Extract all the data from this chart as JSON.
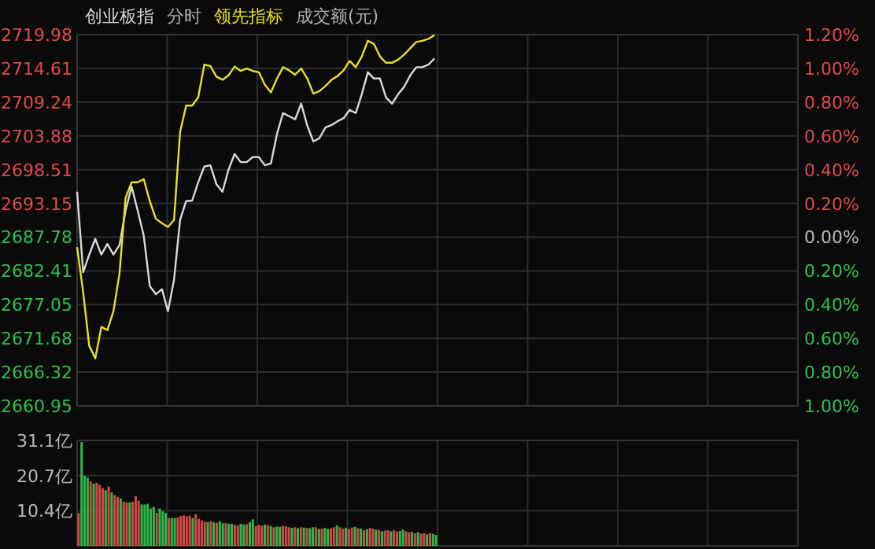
{
  "chart_data": [
    {
      "type": "line",
      "grid": true,
      "annotations": [
        "分时",
        "成交额(元)"
      ],
      "categories": [
        null,
        null,
        null,
        null,
        null,
        null,
        null,
        null,
        null,
        null,
        null,
        null,
        null,
        null,
        null,
        null,
        null,
        null,
        null,
        null,
        null,
        null,
        null,
        null,
        null,
        null,
        null,
        null,
        null,
        null,
        null,
        null,
        null,
        null,
        null,
        null,
        null,
        null,
        null,
        null,
        null,
        null,
        null,
        null,
        null,
        null,
        null,
        null,
        null,
        null,
        null,
        null,
        null,
        null,
        null,
        null,
        null,
        null,
        null,
        null,
        null,
        null,
        null,
        null,
        null,
        null,
        null,
        null,
        null,
        null,
        null,
        null,
        null,
        null,
        null,
        null,
        null,
        null,
        null,
        null,
        null,
        null,
        null,
        null,
        null,
        null,
        null,
        null,
        null,
        null,
        null,
        null,
        null,
        null,
        null,
        null,
        null,
        null,
        null,
        null,
        null,
        null,
        null,
        null,
        null,
        null,
        null,
        null,
        null,
        null,
        null,
        null,
        null,
        null,
        null,
        null,
        null,
        null,
        null,
        null
      ],
      "ylim": [
        2660.95,
        2719.98
      ],
      "yticks": [
        2719.98,
        2714.61,
        2709.24,
        2703.88,
        2698.51,
        2693.15,
        2687.78,
        2682.41,
        2677.05,
        2671.68,
        2666.32,
        2660.95
      ],
      "y2lim": [
        -1.0,
        1.2
      ],
      "y2ticks": [
        {
          "value": 1.2,
          "label": "1.20%"
        },
        {
          "value": 1.0,
          "label": "1.00%"
        },
        {
          "value": 0.8,
          "label": "0.80%"
        },
        {
          "value": 0.6,
          "label": "0.60%"
        },
        {
          "value": 0.4,
          "label": "0.40%"
        },
        {
          "value": 0.2,
          "label": "0.20%"
        },
        {
          "value": 0.0,
          "label": "0.00%"
        },
        {
          "value": -0.2,
          "label": "0.20%"
        },
        {
          "value": -0.4,
          "label": "0.40%"
        },
        {
          "value": -0.6,
          "label": "0.60%"
        },
        {
          "value": -0.8,
          "label": "0.80%"
        },
        {
          "value": -1.0,
          "label": "1.00%"
        }
      ],
      "series": [
        {
          "name": "创业板指",
          "color": "#d8d8d8",
          "values": [
            2695.0,
            2682.2,
            2685.0,
            2687.5,
            2685.0,
            2686.7,
            2685.0,
            2686.5,
            2692.0,
            2695.8,
            2692.0,
            2688.0,
            2680.0,
            2678.7,
            2679.5,
            2676.0,
            2681.0,
            2690.5,
            2693.5,
            2693.6,
            2696.5,
            2699.0,
            2699.2,
            2696.2,
            2695.0,
            2698.5,
            2701.0,
            2699.7,
            2699.7,
            2700.5,
            2700.5,
            2699.2,
            2699.5,
            2704.2,
            2707.5,
            2707.0,
            2706.5,
            2709.0,
            2705.5,
            2703.0,
            2703.5,
            2705.2,
            2705.6,
            2706.2,
            2706.7,
            2708.0,
            2707.5,
            2710.5,
            2714.0,
            2713.0,
            2713.0,
            2710.0,
            2709.0,
            2710.5,
            2711.7,
            2713.5,
            2714.8,
            2714.8,
            2715.2,
            2716.2,
            null,
            null,
            null,
            null,
            null,
            null,
            null,
            null,
            null,
            null,
            null,
            null,
            null,
            null,
            null,
            null,
            null,
            null,
            null,
            null,
            null,
            null,
            null,
            null,
            null,
            null,
            null,
            null,
            null,
            null,
            null,
            null,
            null,
            null,
            null,
            null,
            null,
            null,
            null,
            null,
            null,
            null,
            null,
            null,
            null,
            null,
            null,
            null,
            null,
            null,
            null,
            null,
            null,
            null,
            null,
            null,
            null,
            null,
            null,
            null
          ]
        },
        {
          "name": "领先指标",
          "color": "#e8e020",
          "values": [
            2686.2,
            2679.0,
            2670.5,
            2668.5,
            2673.5,
            2673.0,
            2676.0,
            2682.0,
            2694.0,
            2696.5,
            2696.5,
            2697.0,
            2693.5,
            2690.7,
            2690.0,
            2689.4,
            2690.5,
            2704.5,
            2708.7,
            2708.7,
            2710.0,
            2715.2,
            2715.0,
            2713.3,
            2712.8,
            2713.5,
            2714.9,
            2714.2,
            2714.6,
            2714.2,
            2714.0,
            2712.0,
            2710.8,
            2713.0,
            2714.8,
            2714.3,
            2713.6,
            2714.6,
            2713.0,
            2710.6,
            2711.0,
            2711.8,
            2712.8,
            2713.4,
            2714.3,
            2715.8,
            2714.8,
            2716.5,
            2719.0,
            2718.5,
            2716.5,
            2715.5,
            2715.5,
            2716.0,
            2716.8,
            2717.8,
            2718.8,
            2719.0,
            2719.3,
            2719.9,
            null,
            null,
            null,
            null,
            null,
            null,
            null,
            null,
            null,
            null,
            null,
            null,
            null,
            null,
            null,
            null,
            null,
            null,
            null,
            null,
            null,
            null,
            null,
            null,
            null,
            null,
            null,
            null,
            null,
            null,
            null,
            null,
            null,
            null,
            null,
            null,
            null,
            null,
            null,
            null,
            null,
            null,
            null,
            null,
            null,
            null,
            null,
            null,
            null,
            null,
            null,
            null,
            null,
            null,
            null,
            null,
            null,
            null,
            null,
            null
          ]
        }
      ]
    },
    {
      "type": "bar",
      "grid": true,
      "categories": [
        null,
        null,
        null,
        null,
        null,
        null,
        null,
        null,
        null,
        null,
        null,
        null,
        null,
        null,
        null,
        null,
        null,
        null,
        null,
        null,
        null,
        null,
        null,
        null,
        null,
        null,
        null,
        null,
        null,
        null,
        null,
        null,
        null,
        null,
        null,
        null,
        null,
        null,
        null,
        null,
        null,
        null,
        null,
        null,
        null,
        null,
        null,
        null,
        null,
        null,
        null,
        null,
        null,
        null,
        null,
        null,
        null,
        null,
        null,
        null,
        null,
        null,
        null,
        null,
        null,
        null,
        null,
        null,
        null,
        null,
        null,
        null,
        null,
        null,
        null,
        null,
        null,
        null,
        null,
        null,
        null,
        null,
        null,
        null,
        null,
        null,
        null,
        null,
        null,
        null,
        null,
        null,
        null,
        null,
        null,
        null,
        null,
        null,
        null,
        null,
        null,
        null,
        null,
        null,
        null,
        null,
        null,
        null,
        null,
        null,
        null,
        null,
        null,
        null,
        null,
        null,
        null,
        null,
        null,
        null,
        null,
        null,
        null,
        null,
        null,
        null,
        null,
        null,
        null,
        null,
        null,
        null,
        null,
        null,
        null,
        null,
        null,
        null,
        null,
        null,
        null,
        null,
        null,
        null,
        null,
        null,
        null,
        null,
        null,
        null,
        null,
        null,
        null,
        null,
        null,
        null,
        null,
        null,
        null,
        null,
        null,
        null,
        null,
        null,
        null,
        null,
        null,
        null,
        null,
        null,
        null,
        null,
        null,
        null,
        null,
        null,
        null,
        null,
        null,
        null,
        null,
        null,
        null,
        null,
        null,
        null,
        null,
        null,
        null,
        null,
        null,
        null,
        null,
        null,
        null,
        null,
        null,
        null,
        null,
        null,
        null,
        null,
        null,
        null,
        null,
        null,
        null,
        null,
        null,
        null,
        null,
        null,
        null,
        null,
        null,
        null,
        null,
        null,
        null,
        null,
        null,
        null,
        null,
        null,
        null,
        null,
        null,
        null,
        null,
        null,
        null,
        null,
        null,
        null,
        null,
        null,
        null,
        null,
        null,
        null
      ],
      "ylim": [
        0,
        31.1
      ],
      "yticks": [
        {
          "value": 10.4,
          "label": "10.4亿"
        },
        {
          "value": 20.7,
          "label": "20.7亿"
        },
        {
          "value": 31.1,
          "label": "31.1亿"
        }
      ],
      "values": [
        9.7,
        30.6,
        20.7,
        20.1,
        19.0,
        18.4,
        18.6,
        18.0,
        17.0,
        16.4,
        17.5,
        15.8,
        15.0,
        14.4,
        14.0,
        13.0,
        12.8,
        12.8,
        13.0,
        14.7,
        13.3,
        12.2,
        12.2,
        12.4,
        11.0,
        11.5,
        9.7,
        11.0,
        10.2,
        9.7,
        8.2,
        8.2,
        8.2,
        8.4,
        8.8,
        9.0,
        8.7,
        8.9,
        8.2,
        9.4,
        8.0,
        7.5,
        7.2,
        7.0,
        7.3,
        7.0,
        6.8,
        7.2,
        6.7,
        6.7,
        6.5,
        6.5,
        6.2,
        6.0,
        6.5,
        6.3,
        6.4,
        7.0,
        7.8,
        5.8,
        6.2,
        6.0,
        6.3,
        6.1,
        5.8,
        5.5,
        5.7,
        5.6,
        5.9,
        5.8,
        5.5,
        5.3,
        5.5,
        5.2,
        5.5,
        5.4,
        5.3,
        5.2,
        5.5,
        5.5,
        5.0,
        5.1,
        5.3,
        5.0,
        5.2,
        5.5,
        6.0,
        5.5,
        5.1,
        5.3,
        5.0,
        5.4,
        5.6,
        5.2,
        5.1,
        4.6,
        4.9,
        5.3,
        5.1,
        4.8,
        4.7,
        4.3,
        4.5,
        4.6,
        4.3,
        4.6,
        4.2,
        4.4,
        4.8,
        4.3,
        4.0,
        4.1,
        3.7,
        4.0,
        3.6,
        3.7,
        3.4,
        3.8,
        3.5,
        3.2,
        null,
        null,
        null,
        null,
        null,
        null,
        null,
        null,
        null,
        null,
        null,
        null,
        null,
        null,
        null,
        null,
        null,
        null,
        null,
        null,
        null,
        null,
        null,
        null,
        null,
        null,
        null,
        null,
        null,
        null,
        null,
        null,
        null,
        null,
        null,
        null,
        null,
        null,
        null,
        null,
        null,
        null,
        null,
        null,
        null,
        null,
        null,
        null,
        null,
        null,
        null,
        null,
        null,
        null,
        null,
        null,
        null,
        null,
        null,
        null,
        null,
        null,
        null,
        null,
        null,
        null,
        null,
        null,
        null,
        null,
        null,
        null,
        null,
        null,
        null,
        null,
        null,
        null,
        null,
        null,
        null,
        null,
        null,
        null,
        null,
        null,
        null,
        null,
        null,
        null,
        null,
        null,
        null,
        null,
        null,
        null,
        null,
        null,
        null,
        null,
        null,
        null,
        null,
        null,
        null,
        null,
        null,
        null,
        null,
        null,
        null,
        null,
        null,
        null,
        null,
        null,
        null,
        null,
        null,
        null
      ],
      "colors": [
        "#d04848",
        "#2eb84a",
        "#2eb84a",
        "#2eb84a",
        "#d04848",
        "#2eb84a",
        "#d04848",
        "#d04848",
        "#d04848",
        "#2eb84a",
        "#d04848",
        "#2eb84a",
        "#d04848",
        "#d04848",
        "#2eb84a",
        "#d04848",
        "#d04848",
        "#2eb84a",
        "#d04848",
        "#d04848",
        "#d04848",
        "#2eb84a",
        "#2eb84a",
        "#2eb84a",
        "#2eb84a",
        "#2eb84a",
        "#d04848",
        "#2eb84a",
        "#2eb84a",
        "#2eb84a",
        "#d04848",
        "#2eb84a",
        "#2eb84a",
        "#d04848",
        "#d04848",
        "#d04848",
        "#d04848",
        "#d04848",
        "#2eb84a",
        "#d04848",
        "#d04848",
        "#d04848",
        "#d04848",
        "#2eb84a",
        "#d04848",
        "#2eb84a",
        "#d04848",
        "#2eb84a",
        "#2eb84a",
        "#d04848",
        "#2eb84a",
        "#2eb84a",
        "#d04848",
        "#d04848",
        "#2eb84a",
        "#2eb84a",
        "#d04848",
        "#2eb84a",
        "#2eb84a",
        "#d04848",
        "#d04848",
        "#d04848",
        "#2eb84a",
        "#d04848",
        "#2eb84a",
        "#d04848",
        "#2eb84a",
        "#2eb84a",
        "#d04848",
        "#d04848",
        "#d04848",
        "#2eb84a",
        "#d04848",
        "#2eb84a",
        "#d04848",
        "#2eb84a",
        "#d04848",
        "#2eb84a",
        "#2eb84a",
        "#d04848",
        "#2eb84a",
        "#d04848",
        "#2eb84a",
        "#2eb84a",
        "#d04848",
        "#d04848",
        "#2eb84a",
        "#d04848",
        "#d04848",
        "#2eb84a",
        "#d04848",
        "#d04848",
        "#2eb84a",
        "#d04848",
        "#2eb84a",
        "#d04848",
        "#2eb84a",
        "#d04848",
        "#d04848",
        "#2eb84a",
        "#d04848",
        "#2eb84a",
        "#d04848",
        "#d04848",
        "#2eb84a",
        "#d04848",
        "#d04848",
        "#2eb84a",
        "#2eb84a",
        "#d04848",
        "#d04848",
        "#2eb84a",
        "#d04848",
        "#2eb84a",
        "#d04848",
        "#d04848",
        "#2eb84a",
        "#d04848",
        "#2eb84a",
        "#2eb84a",
        null,
        null,
        null,
        null,
        null,
        null,
        null,
        null,
        null,
        null,
        null,
        null,
        null,
        null,
        null,
        null,
        null,
        null,
        null,
        null,
        null,
        null,
        null,
        null,
        null,
        null,
        null,
        null,
        null,
        null,
        null,
        null,
        null,
        null,
        null,
        null,
        null,
        null,
        null,
        null,
        null,
        null,
        null,
        null,
        null,
        null,
        null,
        null,
        null,
        null,
        null,
        null,
        null,
        null,
        null,
        null,
        null,
        null,
        null,
        null,
        null,
        null,
        null,
        null,
        null,
        null,
        null,
        null,
        null,
        null,
        null,
        null,
        null,
        null,
        null,
        null,
        null,
        null,
        null,
        null,
        null,
        null,
        null,
        null,
        null,
        null,
        null,
        null,
        null,
        null,
        null,
        null,
        null,
        null,
        null,
        null,
        null,
        null,
        null,
        null,
        null,
        null,
        null,
        null,
        null,
        null,
        null,
        null,
        null,
        null,
        null,
        null,
        null,
        null,
        null,
        null,
        null,
        null,
        null,
        null
      ]
    }
  ]
}
